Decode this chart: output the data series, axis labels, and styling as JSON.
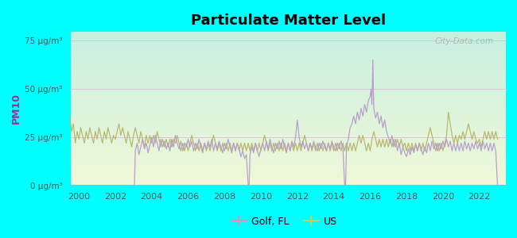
{
  "title": "Particulate Matter Level",
  "ylabel": "PM10",
  "background_outer": "#00FFFF",
  "ylim": [
    0,
    80
  ],
  "yticks": [
    0,
    25,
    50,
    75
  ],
  "ytick_labels": [
    "0 μg/m³",
    "25 μg/m³",
    "50 μg/m³",
    "75 μg/m³"
  ],
  "xlim": [
    1999.5,
    2023.5
  ],
  "xticks": [
    2000,
    2002,
    2004,
    2006,
    2008,
    2010,
    2012,
    2014,
    2016,
    2018,
    2020,
    2022
  ],
  "golf_color": "#b8a0cc",
  "us_color": "#b8b870",
  "legend_golf_color": "#ee88bb",
  "legend_us_color": "#cccc66",
  "watermark": "City-Data.com",
  "golf_fl_data": [
    [
      1999.5,
      0
    ],
    [
      2000.0,
      0
    ],
    [
      2000.5,
      0
    ],
    [
      2001.0,
      0
    ],
    [
      2001.5,
      0
    ],
    [
      2002.0,
      0
    ],
    [
      2002.5,
      0
    ],
    [
      2003.0,
      0
    ],
    [
      2003.05,
      0
    ],
    [
      2003.1,
      18
    ],
    [
      2003.2,
      22
    ],
    [
      2003.3,
      16
    ],
    [
      2003.4,
      20
    ],
    [
      2003.5,
      24
    ],
    [
      2003.6,
      19
    ],
    [
      2003.7,
      22
    ],
    [
      2003.8,
      17
    ],
    [
      2003.9,
      21
    ],
    [
      2004.0,
      25
    ],
    [
      2004.1,
      20
    ],
    [
      2004.2,
      26
    ],
    [
      2004.3,
      22
    ],
    [
      2004.4,
      18
    ],
    [
      2004.5,
      24
    ],
    [
      2004.6,
      20
    ],
    [
      2004.7,
      23
    ],
    [
      2004.8,
      19
    ],
    [
      2004.9,
      22
    ],
    [
      2005.0,
      18
    ],
    [
      2005.1,
      24
    ],
    [
      2005.2,
      20
    ],
    [
      2005.3,
      26
    ],
    [
      2005.4,
      22
    ],
    [
      2005.5,
      19
    ],
    [
      2005.6,
      23
    ],
    [
      2005.7,
      18
    ],
    [
      2005.8,
      22
    ],
    [
      2005.9,
      20
    ],
    [
      2006.0,
      24
    ],
    [
      2006.1,
      20
    ],
    [
      2006.2,
      23
    ],
    [
      2006.3,
      18
    ],
    [
      2006.4,
      22
    ],
    [
      2006.5,
      19
    ],
    [
      2006.6,
      24
    ],
    [
      2006.7,
      20
    ],
    [
      2006.8,
      17
    ],
    [
      2006.9,
      22
    ],
    [
      2007.0,
      19
    ],
    [
      2007.1,
      23
    ],
    [
      2007.2,
      20
    ],
    [
      2007.3,
      24
    ],
    [
      2007.4,
      18
    ],
    [
      2007.5,
      22
    ],
    [
      2007.6,
      19
    ],
    [
      2007.7,
      23
    ],
    [
      2007.8,
      20
    ],
    [
      2007.9,
      17
    ],
    [
      2008.0,
      22
    ],
    [
      2008.1,
      19
    ],
    [
      2008.2,
      24
    ],
    [
      2008.3,
      20
    ],
    [
      2008.4,
      17
    ],
    [
      2008.5,
      22
    ],
    [
      2008.6,
      18
    ],
    [
      2008.7,
      22
    ],
    [
      2008.8,
      19
    ],
    [
      2008.9,
      15
    ],
    [
      2009.0,
      18
    ],
    [
      2009.1,
      14
    ],
    [
      2009.2,
      16
    ],
    [
      2009.3,
      0
    ],
    [
      2009.35,
      0
    ],
    [
      2009.4,
      16
    ],
    [
      2009.5,
      20
    ],
    [
      2009.6,
      17
    ],
    [
      2009.7,
      22
    ],
    [
      2009.8,
      18
    ],
    [
      2009.9,
      15
    ],
    [
      2010.0,
      19
    ],
    [
      2010.1,
      22
    ],
    [
      2010.2,
      18
    ],
    [
      2010.3,
      23
    ],
    [
      2010.4,
      19
    ],
    [
      2010.5,
      24
    ],
    [
      2010.6,
      20
    ],
    [
      2010.7,
      17
    ],
    [
      2010.8,
      22
    ],
    [
      2010.9,
      19
    ],
    [
      2011.0,
      23
    ],
    [
      2011.1,
      19
    ],
    [
      2011.2,
      24
    ],
    [
      2011.3,
      20
    ],
    [
      2011.4,
      17
    ],
    [
      2011.5,
      22
    ],
    [
      2011.6,
      18
    ],
    [
      2011.7,
      23
    ],
    [
      2011.8,
      20
    ],
    [
      2011.9,
      25
    ],
    [
      2012.0,
      34
    ],
    [
      2012.1,
      25
    ],
    [
      2012.2,
      20
    ],
    [
      2012.3,
      23
    ],
    [
      2012.4,
      19
    ],
    [
      2012.5,
      22
    ],
    [
      2012.6,
      18
    ],
    [
      2012.7,
      22
    ],
    [
      2012.8,
      19
    ],
    [
      2012.9,
      23
    ],
    [
      2013.0,
      20
    ],
    [
      2013.1,
      18
    ],
    [
      2013.2,
      22
    ],
    [
      2013.3,
      19
    ],
    [
      2013.4,
      23
    ],
    [
      2013.5,
      20
    ],
    [
      2013.6,
      18
    ],
    [
      2013.7,
      22
    ],
    [
      2013.8,
      19
    ],
    [
      2013.9,
      23
    ],
    [
      2014.0,
      20
    ],
    [
      2014.1,
      18
    ],
    [
      2014.2,
      22
    ],
    [
      2014.3,
      19
    ],
    [
      2014.4,
      23
    ],
    [
      2014.5,
      20
    ],
    [
      2014.6,
      0
    ],
    [
      2014.65,
      0
    ],
    [
      2014.7,
      20
    ],
    [
      2014.8,
      24
    ],
    [
      2014.9,
      30
    ],
    [
      2015.0,
      32
    ],
    [
      2015.1,
      36
    ],
    [
      2015.2,
      32
    ],
    [
      2015.3,
      38
    ],
    [
      2015.4,
      34
    ],
    [
      2015.5,
      40
    ],
    [
      2015.6,
      36
    ],
    [
      2015.7,
      42
    ],
    [
      2015.8,
      38
    ],
    [
      2015.9,
      44
    ],
    [
      2016.0,
      46
    ],
    [
      2016.05,
      50
    ],
    [
      2016.1,
      42
    ],
    [
      2016.15,
      65
    ],
    [
      2016.2,
      40
    ],
    [
      2016.3,
      35
    ],
    [
      2016.4,
      38
    ],
    [
      2016.5,
      32
    ],
    [
      2016.6,
      36
    ],
    [
      2016.7,
      30
    ],
    [
      2016.8,
      34
    ],
    [
      2016.9,
      28
    ],
    [
      2017.0,
      25
    ],
    [
      2017.1,
      22
    ],
    [
      2017.2,
      26
    ],
    [
      2017.3,
      20
    ],
    [
      2017.4,
      24
    ],
    [
      2017.5,
      18
    ],
    [
      2017.6,
      22
    ],
    [
      2017.7,
      16
    ],
    [
      2017.8,
      20
    ],
    [
      2017.9,
      17
    ],
    [
      2018.0,
      15
    ],
    [
      2018.1,
      19
    ],
    [
      2018.2,
      16
    ],
    [
      2018.3,
      20
    ],
    [
      2018.4,
      17
    ],
    [
      2018.5,
      21
    ],
    [
      2018.6,
      18
    ],
    [
      2018.7,
      22
    ],
    [
      2018.8,
      19
    ],
    [
      2018.9,
      16
    ],
    [
      2019.0,
      20
    ],
    [
      2019.1,
      17
    ],
    [
      2019.2,
      22
    ],
    [
      2019.3,
      18
    ],
    [
      2019.4,
      23
    ],
    [
      2019.5,
      19
    ],
    [
      2019.6,
      22
    ],
    [
      2019.7,
      18
    ],
    [
      2019.8,
      22
    ],
    [
      2019.9,
      19
    ],
    [
      2020.0,
      23
    ],
    [
      2020.1,
      20
    ],
    [
      2020.2,
      24
    ],
    [
      2020.3,
      20
    ],
    [
      2020.4,
      23
    ],
    [
      2020.5,
      18
    ],
    [
      2020.6,
      22
    ],
    [
      2020.7,
      18
    ],
    [
      2020.8,
      22
    ],
    [
      2020.9,
      18
    ],
    [
      2021.0,
      22
    ],
    [
      2021.1,
      18
    ],
    [
      2021.2,
      23
    ],
    [
      2021.3,
      19
    ],
    [
      2021.4,
      22
    ],
    [
      2021.5,
      18
    ],
    [
      2021.6,
      22
    ],
    [
      2021.7,
      19
    ],
    [
      2021.8,
      23
    ],
    [
      2021.9,
      19
    ],
    [
      2022.0,
      22
    ],
    [
      2022.1,
      18
    ],
    [
      2022.2,
      23
    ],
    [
      2022.3,
      19
    ],
    [
      2022.4,
      22
    ],
    [
      2022.5,
      18
    ],
    [
      2022.6,
      22
    ],
    [
      2022.7,
      18
    ],
    [
      2022.8,
      22
    ],
    [
      2022.9,
      18
    ],
    [
      2023.0,
      0
    ]
  ],
  "us_data": [
    [
      1999.5,
      36
    ],
    [
      1999.6,
      28
    ],
    [
      1999.7,
      32
    ],
    [
      1999.8,
      22
    ],
    [
      1999.9,
      28
    ],
    [
      2000.0,
      24
    ],
    [
      2000.1,
      30
    ],
    [
      2000.2,
      26
    ],
    [
      2000.3,
      22
    ],
    [
      2000.4,
      28
    ],
    [
      2000.5,
      24
    ],
    [
      2000.6,
      30
    ],
    [
      2000.7,
      26
    ],
    [
      2000.8,
      22
    ],
    [
      2000.9,
      28
    ],
    [
      2001.0,
      24
    ],
    [
      2001.1,
      30
    ],
    [
      2001.2,
      26
    ],
    [
      2001.3,
      22
    ],
    [
      2001.4,
      28
    ],
    [
      2001.5,
      24
    ],
    [
      2001.6,
      30
    ],
    [
      2001.7,
      26
    ],
    [
      2001.8,
      22
    ],
    [
      2001.9,
      26
    ],
    [
      2002.0,
      24
    ],
    [
      2002.1,
      28
    ],
    [
      2002.2,
      32
    ],
    [
      2002.3,
      26
    ],
    [
      2002.4,
      30
    ],
    [
      2002.5,
      26
    ],
    [
      2002.6,
      22
    ],
    [
      2002.7,
      28
    ],
    [
      2002.8,
      24
    ],
    [
      2002.9,
      20
    ],
    [
      2003.0,
      26
    ],
    [
      2003.1,
      30
    ],
    [
      2003.2,
      26
    ],
    [
      2003.3,
      22
    ],
    [
      2003.4,
      28
    ],
    [
      2003.5,
      24
    ],
    [
      2003.6,
      20
    ],
    [
      2003.7,
      26
    ],
    [
      2003.8,
      22
    ],
    [
      2003.9,
      26
    ],
    [
      2004.0,
      22
    ],
    [
      2004.1,
      26
    ],
    [
      2004.2,
      22
    ],
    [
      2004.3,
      28
    ],
    [
      2004.4,
      24
    ],
    [
      2004.5,
      20
    ],
    [
      2004.6,
      24
    ],
    [
      2004.7,
      20
    ],
    [
      2004.8,
      24
    ],
    [
      2004.9,
      20
    ],
    [
      2005.0,
      24
    ],
    [
      2005.1,
      20
    ],
    [
      2005.2,
      24
    ],
    [
      2005.3,
      22
    ],
    [
      2005.4,
      26
    ],
    [
      2005.5,
      22
    ],
    [
      2005.6,
      18
    ],
    [
      2005.7,
      22
    ],
    [
      2005.8,
      18
    ],
    [
      2005.9,
      22
    ],
    [
      2006.0,
      18
    ],
    [
      2006.1,
      22
    ],
    [
      2006.2,
      26
    ],
    [
      2006.3,
      22
    ],
    [
      2006.4,
      18
    ],
    [
      2006.5,
      22
    ],
    [
      2006.6,
      18
    ],
    [
      2006.7,
      22
    ],
    [
      2006.8,
      18
    ],
    [
      2006.9,
      22
    ],
    [
      2007.0,
      18
    ],
    [
      2007.1,
      22
    ],
    [
      2007.2,
      18
    ],
    [
      2007.3,
      22
    ],
    [
      2007.4,
      26
    ],
    [
      2007.5,
      22
    ],
    [
      2007.6,
      18
    ],
    [
      2007.7,
      22
    ],
    [
      2007.8,
      18
    ],
    [
      2007.9,
      22
    ],
    [
      2008.0,
      18
    ],
    [
      2008.1,
      22
    ],
    [
      2008.2,
      18
    ],
    [
      2008.3,
      22
    ],
    [
      2008.4,
      18
    ],
    [
      2008.5,
      22
    ],
    [
      2008.6,
      18
    ],
    [
      2008.7,
      22
    ],
    [
      2008.8,
      18
    ],
    [
      2008.9,
      22
    ],
    [
      2009.0,
      18
    ],
    [
      2009.1,
      22
    ],
    [
      2009.2,
      18
    ],
    [
      2009.3,
      22
    ],
    [
      2009.4,
      18
    ],
    [
      2009.5,
      22
    ],
    [
      2009.6,
      18
    ],
    [
      2009.7,
      22
    ],
    [
      2009.8,
      18
    ],
    [
      2009.9,
      22
    ],
    [
      2010.0,
      18
    ],
    [
      2010.1,
      22
    ],
    [
      2010.2,
      26
    ],
    [
      2010.3,
      22
    ],
    [
      2010.4,
      18
    ],
    [
      2010.5,
      22
    ],
    [
      2010.6,
      18
    ],
    [
      2010.7,
      22
    ],
    [
      2010.8,
      18
    ],
    [
      2010.9,
      22
    ],
    [
      2011.0,
      18
    ],
    [
      2011.1,
      22
    ],
    [
      2011.2,
      18
    ],
    [
      2011.3,
      22
    ],
    [
      2011.4,
      18
    ],
    [
      2011.5,
      22
    ],
    [
      2011.6,
      18
    ],
    [
      2011.7,
      22
    ],
    [
      2011.8,
      18
    ],
    [
      2011.9,
      22
    ],
    [
      2012.0,
      18
    ],
    [
      2012.1,
      22
    ],
    [
      2012.2,
      18
    ],
    [
      2012.3,
      22
    ],
    [
      2012.4,
      26
    ],
    [
      2012.5,
      22
    ],
    [
      2012.6,
      18
    ],
    [
      2012.7,
      22
    ],
    [
      2012.8,
      18
    ],
    [
      2012.9,
      22
    ],
    [
      2013.0,
      18
    ],
    [
      2013.1,
      22
    ],
    [
      2013.2,
      18
    ],
    [
      2013.3,
      22
    ],
    [
      2013.4,
      18
    ],
    [
      2013.5,
      22
    ],
    [
      2013.6,
      18
    ],
    [
      2013.7,
      22
    ],
    [
      2013.8,
      18
    ],
    [
      2013.9,
      22
    ],
    [
      2014.0,
      18
    ],
    [
      2014.1,
      22
    ],
    [
      2014.2,
      18
    ],
    [
      2014.3,
      22
    ],
    [
      2014.4,
      18
    ],
    [
      2014.5,
      22
    ],
    [
      2014.6,
      18
    ],
    [
      2014.7,
      22
    ],
    [
      2014.8,
      18
    ],
    [
      2014.9,
      22
    ],
    [
      2015.0,
      18
    ],
    [
      2015.1,
      22
    ],
    [
      2015.2,
      18
    ],
    [
      2015.3,
      22
    ],
    [
      2015.4,
      26
    ],
    [
      2015.5,
      22
    ],
    [
      2015.6,
      26
    ],
    [
      2015.7,
      22
    ],
    [
      2015.8,
      18
    ],
    [
      2015.9,
      22
    ],
    [
      2016.0,
      18
    ],
    [
      2016.1,
      24
    ],
    [
      2016.2,
      28
    ],
    [
      2016.3,
      24
    ],
    [
      2016.4,
      20
    ],
    [
      2016.5,
      24
    ],
    [
      2016.6,
      20
    ],
    [
      2016.7,
      24
    ],
    [
      2016.8,
      20
    ],
    [
      2016.9,
      24
    ],
    [
      2017.0,
      20
    ],
    [
      2017.1,
      24
    ],
    [
      2017.2,
      20
    ],
    [
      2017.3,
      24
    ],
    [
      2017.4,
      20
    ],
    [
      2017.5,
      24
    ],
    [
      2017.6,
      20
    ],
    [
      2017.7,
      24
    ],
    [
      2017.8,
      20
    ],
    [
      2017.9,
      22
    ],
    [
      2018.0,
      18
    ],
    [
      2018.1,
      22
    ],
    [
      2018.2,
      18
    ],
    [
      2018.3,
      22
    ],
    [
      2018.4,
      18
    ],
    [
      2018.5,
      22
    ],
    [
      2018.6,
      18
    ],
    [
      2018.7,
      22
    ],
    [
      2018.8,
      18
    ],
    [
      2018.9,
      22
    ],
    [
      2019.0,
      18
    ],
    [
      2019.1,
      22
    ],
    [
      2019.2,
      26
    ],
    [
      2019.3,
      30
    ],
    [
      2019.4,
      26
    ],
    [
      2019.5,
      22
    ],
    [
      2019.6,
      18
    ],
    [
      2019.7,
      22
    ],
    [
      2019.8,
      18
    ],
    [
      2019.9,
      22
    ],
    [
      2020.0,
      18
    ],
    [
      2020.1,
      22
    ],
    [
      2020.2,
      26
    ],
    [
      2020.3,
      38
    ],
    [
      2020.4,
      32
    ],
    [
      2020.5,
      26
    ],
    [
      2020.6,
      22
    ],
    [
      2020.7,
      26
    ],
    [
      2020.8,
      22
    ],
    [
      2020.9,
      26
    ],
    [
      2021.0,
      24
    ],
    [
      2021.1,
      28
    ],
    [
      2021.2,
      24
    ],
    [
      2021.3,
      28
    ],
    [
      2021.4,
      32
    ],
    [
      2021.5,
      28
    ],
    [
      2021.6,
      24
    ],
    [
      2021.7,
      28
    ],
    [
      2021.8,
      24
    ],
    [
      2021.9,
      22
    ],
    [
      2022.0,
      24
    ],
    [
      2022.1,
      20
    ],
    [
      2022.2,
      24
    ],
    [
      2022.3,
      28
    ],
    [
      2022.4,
      24
    ],
    [
      2022.5,
      28
    ],
    [
      2022.6,
      24
    ],
    [
      2022.7,
      28
    ],
    [
      2022.8,
      24
    ],
    [
      2022.9,
      28
    ],
    [
      2023.0,
      24
    ]
  ]
}
